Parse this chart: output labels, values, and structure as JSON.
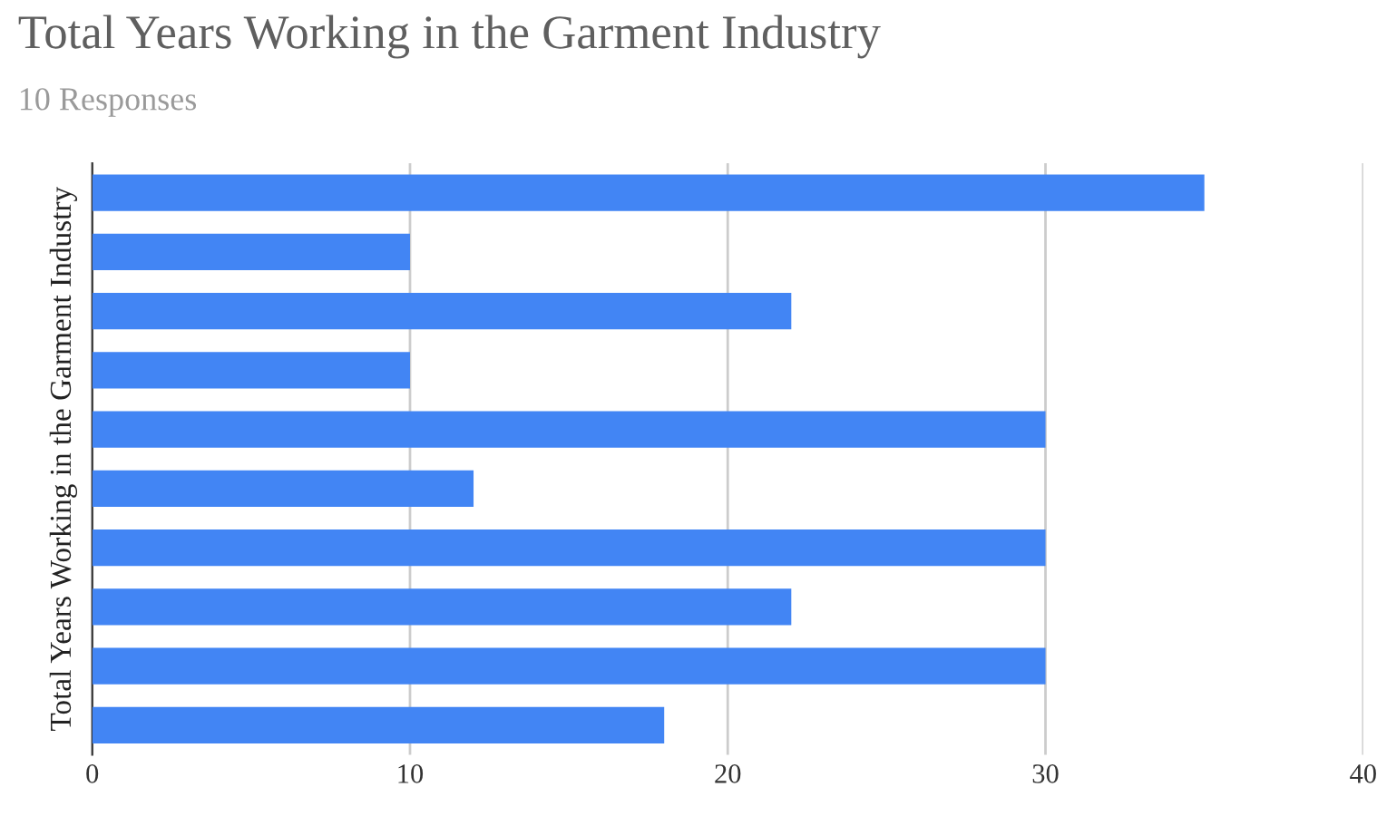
{
  "chart_data": {
    "type": "bar",
    "orientation": "horizontal",
    "title": "Total Years Working in the Garment Industry",
    "subtitle": "10 Responses",
    "ylabel": "Total Years Working in the Garment Industry",
    "categories": [
      null,
      null,
      null,
      null,
      null,
      null,
      null,
      null,
      null,
      null
    ],
    "values": [
      35,
      10,
      22,
      10,
      30,
      12,
      30,
      22,
      30,
      18
    ],
    "color": "#4285f4",
    "xlim": [
      0,
      40
    ],
    "xticks": [
      0,
      10,
      20,
      30,
      40
    ],
    "grid": "x",
    "tick_labels": "x"
  }
}
